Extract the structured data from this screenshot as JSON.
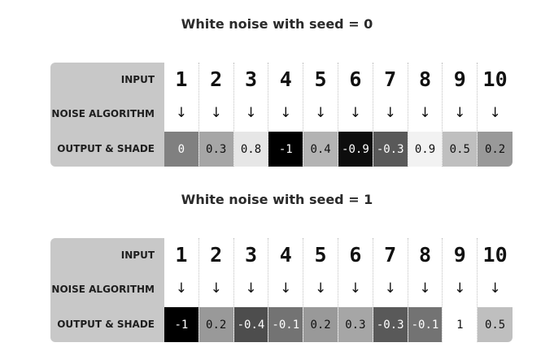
{
  "row_labels": {
    "input": "INPUT",
    "algorithm": "NOISE ALGORITHM",
    "output": "OUTPUT & SHADE"
  },
  "arrow_glyph": "↓",
  "examples": [
    {
      "title": "White noise with seed = 0",
      "inputs": [
        "1",
        "2",
        "3",
        "4",
        "5",
        "6",
        "7",
        "8",
        "9",
        "10"
      ],
      "outputs": [
        "0",
        "0.3",
        "0.8",
        "-1",
        "0.4",
        "-0.9",
        "-0.3",
        "0.9",
        "0.5",
        "0.2"
      ]
    },
    {
      "title": "White noise with seed = 1",
      "inputs": [
        "1",
        "2",
        "3",
        "4",
        "5",
        "6",
        "7",
        "8",
        "9",
        "10"
      ],
      "outputs": [
        "-1",
        "0.2",
        "-0.4",
        "-0.1",
        "0.2",
        "0.3",
        "-0.3",
        "-0.1",
        "1",
        "0.5"
      ]
    }
  ]
}
